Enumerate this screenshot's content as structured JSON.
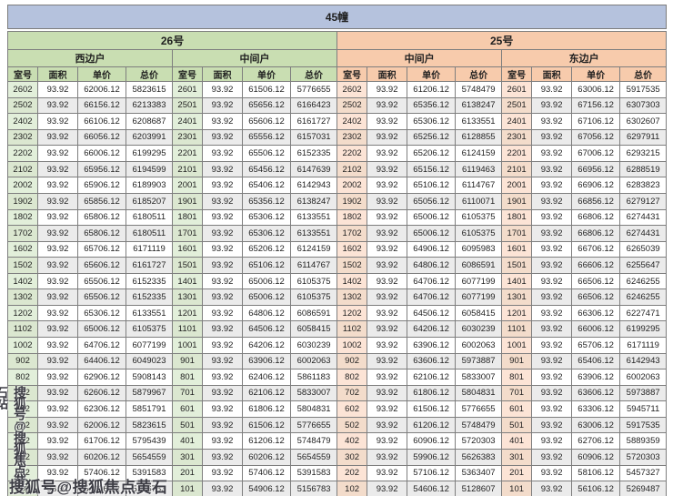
{
  "title": "45幢",
  "buildings": [
    {
      "label": "26号",
      "units": [
        "西边户",
        "中间户"
      ]
    },
    {
      "label": "25号",
      "units": [
        "中间户",
        "东边户"
      ]
    }
  ],
  "column_headers": [
    "室号",
    "面积",
    "单价",
    "总价"
  ],
  "watermark": {
    "horizontal": "搜狐号@搜狐焦点黄石站",
    "vertical": "搜狐号@搜狐焦点黄石站"
  },
  "colors": {
    "title_bar": "#b5c2dd",
    "building_26_header": "#c9deb2",
    "building_26_room_col": "#e2efda",
    "building_25_header": "#f7cbac",
    "building_25_room_col": "#fce4d6",
    "row_band": "#ebebeb",
    "border": "#7e7e7e"
  },
  "groups": [
    {
      "building": "26号",
      "unit": "西边户",
      "rows": [
        [
          "2602",
          "93.92",
          "62006.12",
          "5823615"
        ],
        [
          "2502",
          "93.92",
          "66156.12",
          "6213383"
        ],
        [
          "2402",
          "93.92",
          "66106.12",
          "6208687"
        ],
        [
          "2302",
          "93.92",
          "66056.12",
          "6203991"
        ],
        [
          "2202",
          "93.92",
          "66006.12",
          "6199295"
        ],
        [
          "2102",
          "93.92",
          "65956.12",
          "6194599"
        ],
        [
          "2002",
          "93.92",
          "65906.12",
          "6189903"
        ],
        [
          "1902",
          "93.92",
          "65856.12",
          "6185207"
        ],
        [
          "1802",
          "93.92",
          "65806.12",
          "6180511"
        ],
        [
          "1702",
          "93.92",
          "65806.12",
          "6180511"
        ],
        [
          "1602",
          "93.92",
          "65706.12",
          "6171119"
        ],
        [
          "1502",
          "93.92",
          "65606.12",
          "6161727"
        ],
        [
          "1402",
          "93.92",
          "65506.12",
          "6152335"
        ],
        [
          "1302",
          "93.92",
          "65506.12",
          "6152335"
        ],
        [
          "1202",
          "93.92",
          "65306.12",
          "6133551"
        ],
        [
          "1102",
          "93.92",
          "65006.12",
          "6105375"
        ],
        [
          "1002",
          "93.92",
          "64706.12",
          "6077199"
        ],
        [
          "902",
          "93.92",
          "64406.12",
          "6049023"
        ],
        [
          "802",
          "93.92",
          "62906.12",
          "5908143"
        ],
        [
          "702",
          "93.92",
          "62606.12",
          "5879967"
        ],
        [
          "602",
          "93.92",
          "62306.12",
          "5851791"
        ],
        [
          "502",
          "93.92",
          "62006.12",
          "5823615"
        ],
        [
          "402",
          "93.92",
          "61706.12",
          "5795439"
        ],
        [
          "302",
          "93.92",
          "60206.12",
          "5654559"
        ],
        [
          "202",
          "93.92",
          "57406.12",
          "5391583"
        ],
        [
          "102",
          "93.92",
          "54906.12",
          "5156783"
        ]
      ]
    },
    {
      "building": "26号",
      "unit": "中间户",
      "rows": [
        [
          "2601",
          "93.92",
          "61506.12",
          "5776655"
        ],
        [
          "2501",
          "93.92",
          "65656.12",
          "6166423"
        ],
        [
          "2401",
          "93.92",
          "65606.12",
          "6161727"
        ],
        [
          "2301",
          "93.92",
          "65556.12",
          "6157031"
        ],
        [
          "2201",
          "93.92",
          "65506.12",
          "6152335"
        ],
        [
          "2101",
          "93.92",
          "65456.12",
          "6147639"
        ],
        [
          "2001",
          "93.92",
          "65406.12",
          "6142943"
        ],
        [
          "1901",
          "93.92",
          "65356.12",
          "6138247"
        ],
        [
          "1801",
          "93.92",
          "65306.12",
          "6133551"
        ],
        [
          "1701",
          "93.92",
          "65306.12",
          "6133551"
        ],
        [
          "1601",
          "93.92",
          "65206.12",
          "6124159"
        ],
        [
          "1501",
          "93.92",
          "65106.12",
          "6114767"
        ],
        [
          "1401",
          "93.92",
          "65006.12",
          "6105375"
        ],
        [
          "1301",
          "93.92",
          "65006.12",
          "6105375"
        ],
        [
          "1201",
          "93.92",
          "64806.12",
          "6086591"
        ],
        [
          "1101",
          "93.92",
          "64506.12",
          "6058415"
        ],
        [
          "1001",
          "93.92",
          "64206.12",
          "6030239"
        ],
        [
          "901",
          "93.92",
          "63906.12",
          "6002063"
        ],
        [
          "801",
          "93.92",
          "62406.12",
          "5861183"
        ],
        [
          "701",
          "93.92",
          "62106.12",
          "5833007"
        ],
        [
          "601",
          "93.92",
          "61806.12",
          "5804831"
        ],
        [
          "501",
          "93.92",
          "61506.12",
          "5776655"
        ],
        [
          "401",
          "93.92",
          "61206.12",
          "5748479"
        ],
        [
          "301",
          "93.92",
          "60206.12",
          "5654559"
        ],
        [
          "201",
          "93.92",
          "57406.12",
          "5391583"
        ],
        [
          "101",
          "93.92",
          "54906.12",
          "5156783"
        ]
      ]
    },
    {
      "building": "25号",
      "unit": "中间户",
      "rows": [
        [
          "2602",
          "93.92",
          "61206.12",
          "5748479"
        ],
        [
          "2502",
          "93.92",
          "65356.12",
          "6138247"
        ],
        [
          "2402",
          "93.92",
          "65306.12",
          "6133551"
        ],
        [
          "2302",
          "93.92",
          "65256.12",
          "6128855"
        ],
        [
          "2202",
          "93.92",
          "65206.12",
          "6124159"
        ],
        [
          "2102",
          "93.92",
          "65156.12",
          "6119463"
        ],
        [
          "2002",
          "93.92",
          "65106.12",
          "6114767"
        ],
        [
          "1902",
          "93.92",
          "65056.12",
          "6110071"
        ],
        [
          "1802",
          "93.92",
          "65006.12",
          "6105375"
        ],
        [
          "1702",
          "93.92",
          "65006.12",
          "6105375"
        ],
        [
          "1602",
          "93.92",
          "64906.12",
          "6095983"
        ],
        [
          "1502",
          "93.92",
          "64806.12",
          "6086591"
        ],
        [
          "1402",
          "93.92",
          "64706.12",
          "6077199"
        ],
        [
          "1302",
          "93.92",
          "64706.12",
          "6077199"
        ],
        [
          "1202",
          "93.92",
          "64506.12",
          "6058415"
        ],
        [
          "1102",
          "93.92",
          "64206.12",
          "6030239"
        ],
        [
          "1002",
          "93.92",
          "63906.12",
          "6002063"
        ],
        [
          "902",
          "93.92",
          "63606.12",
          "5973887"
        ],
        [
          "802",
          "93.92",
          "62106.12",
          "5833007"
        ],
        [
          "702",
          "93.92",
          "61806.12",
          "5804831"
        ],
        [
          "602",
          "93.92",
          "61506.12",
          "5776655"
        ],
        [
          "502",
          "93.92",
          "61206.12",
          "5748479"
        ],
        [
          "402",
          "93.92",
          "60906.12",
          "5720303"
        ],
        [
          "302",
          "93.92",
          "59906.12",
          "5626383"
        ],
        [
          "202",
          "93.92",
          "57106.12",
          "5363407"
        ],
        [
          "102",
          "93.92",
          "54606.12",
          "5128607"
        ]
      ]
    },
    {
      "building": "25号",
      "unit": "东边户",
      "rows": [
        [
          "2601",
          "93.92",
          "63006.12",
          "5917535"
        ],
        [
          "2501",
          "93.92",
          "67156.12",
          "6307303"
        ],
        [
          "2401",
          "93.92",
          "67106.12",
          "6302607"
        ],
        [
          "2301",
          "93.92",
          "67056.12",
          "6297911"
        ],
        [
          "2201",
          "93.92",
          "67006.12",
          "6293215"
        ],
        [
          "2101",
          "93.92",
          "66956.12",
          "6288519"
        ],
        [
          "2001",
          "93.92",
          "66906.12",
          "6283823"
        ],
        [
          "1901",
          "93.92",
          "66856.12",
          "6279127"
        ],
        [
          "1801",
          "93.92",
          "66806.12",
          "6274431"
        ],
        [
          "1701",
          "93.92",
          "66806.12",
          "6274431"
        ],
        [
          "1601",
          "93.92",
          "66706.12",
          "6265039"
        ],
        [
          "1501",
          "93.92",
          "66606.12",
          "6255647"
        ],
        [
          "1401",
          "93.92",
          "66506.12",
          "6246255"
        ],
        [
          "1301",
          "93.92",
          "66506.12",
          "6246255"
        ],
        [
          "1201",
          "93.92",
          "66306.12",
          "6227471"
        ],
        [
          "1101",
          "93.92",
          "66006.12",
          "6199295"
        ],
        [
          "1001",
          "93.92",
          "65706.12",
          "6171119"
        ],
        [
          "901",
          "93.92",
          "65406.12",
          "6142943"
        ],
        [
          "801",
          "93.92",
          "63906.12",
          "6002063"
        ],
        [
          "701",
          "93.92",
          "63606.12",
          "5973887"
        ],
        [
          "601",
          "93.92",
          "63306.12",
          "5945711"
        ],
        [
          "501",
          "93.92",
          "63006.12",
          "5917535"
        ],
        [
          "401",
          "93.92",
          "62706.12",
          "5889359"
        ],
        [
          "301",
          "93.92",
          "60906.12",
          "5720303"
        ],
        [
          "201",
          "93.92",
          "58106.12",
          "5457327"
        ],
        [
          "101",
          "93.92",
          "56106.12",
          "5269487"
        ]
      ]
    }
  ]
}
